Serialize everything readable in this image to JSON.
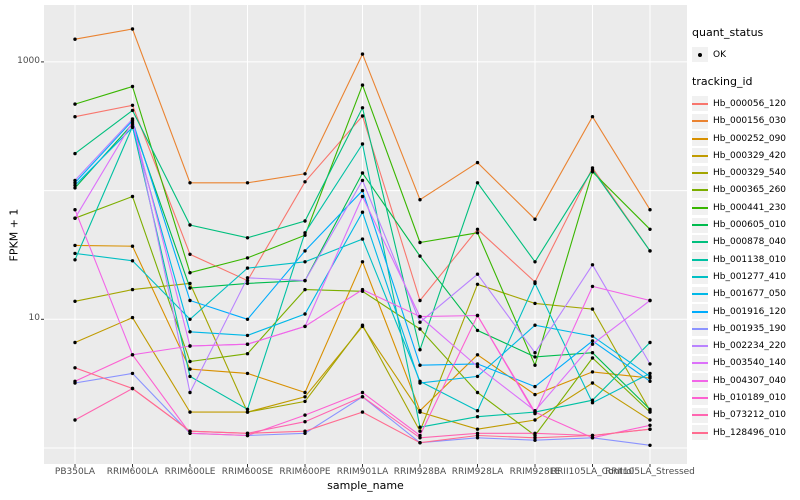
{
  "chart_data": {
    "type": "line",
    "title": "",
    "xlabel": "sample_name",
    "ylabel": "FPKM + 1",
    "y_scale": "log10",
    "ylim": [
      0.75,
      2800
    ],
    "legend_position": "right",
    "grid": true,
    "y_tick_labels": [
      {
        "value": 10,
        "label": "10"
      },
      {
        "value": 1000,
        "label": "1000"
      }
    ],
    "y_gridlines": [
      1,
      10,
      100,
      1000
    ],
    "categories": [
      "PB350LA",
      "RRIM600LA",
      "RRIM600LE",
      "RRIM600SE",
      "RRIM600PE",
      "RRIM901LA",
      "RRIM928BA",
      "RRIM928LA",
      "RRIM928LE",
      "RRII105LA_Control",
      "RRII105LA_Stressed"
    ],
    "series": [
      {
        "name": "Hb_000056_120",
        "color": "#F8766D",
        "values": [
          375,
          460,
          32,
          20,
          117,
          380,
          14,
          50,
          19.5,
          150,
          34
        ]
      },
      {
        "name": "Hb_000156_030",
        "color": "#EA8331",
        "values": [
          1500,
          1800,
          115,
          115,
          135,
          1150,
          85,
          165,
          60,
          375,
          71
        ]
      },
      {
        "name": "Hb_000252_090",
        "color": "#D89000",
        "values": [
          37.5,
          37,
          4.1,
          3.8,
          2.7,
          28,
          1.95,
          5.3,
          2.6,
          3.9,
          3.5
        ]
      },
      {
        "name": "Hb_000329_420",
        "color": "#C09B00",
        "values": [
          6.6,
          10.3,
          1.9,
          1.9,
          2.5,
          8.8,
          1.9,
          1.4,
          1.65,
          3.2,
          1.65
        ]
      },
      {
        "name": "Hb_000329_540",
        "color": "#A3A500",
        "values": [
          13.8,
          17,
          19,
          1.9,
          2.3,
          9,
          1.35,
          18.7,
          13.3,
          12,
          1.95
        ]
      },
      {
        "name": "Hb_000365_260",
        "color": "#7CAE00",
        "values": [
          61,
          90,
          4.7,
          5.4,
          17,
          16.5,
          8.4,
          2.7,
          1.25,
          5,
          1.9
        ]
      },
      {
        "name": "Hb_000441_230",
        "color": "#39B600",
        "values": [
          470,
          644,
          23,
          30,
          45,
          660,
          39.5,
          47,
          4.4,
          140,
          50
        ]
      },
      {
        "name": "Hb_000605_010",
        "color": "#00BB4E",
        "values": [
          105,
          330,
          17.5,
          19,
          20,
          137,
          31,
          8.2,
          5.1,
          5.5,
          2.0
        ]
      },
      {
        "name": "Hb_000878_040",
        "color": "#00BF7D",
        "values": [
          194,
          420,
          54,
          43,
          58,
          440,
          5.8,
          115,
          28,
          145,
          34
        ]
      },
      {
        "name": "Hb_001138_010",
        "color": "#00C1A3",
        "values": [
          29,
          315,
          3.6,
          2.0,
          47,
          230,
          1.45,
          1.75,
          1.9,
          2.35,
          6.6
        ]
      },
      {
        "name": "Hb_001277_410",
        "color": "#00BFC4",
        "values": [
          32.5,
          28.5,
          10,
          25,
          28,
          42,
          3.3,
          1.95,
          19,
          2.25,
          3.8
        ]
      },
      {
        "name": "Hb_001677_050",
        "color": "#00B8E7",
        "values": [
          110,
          310,
          8,
          7.5,
          11,
          68,
          3.2,
          3.6,
          9,
          7.4,
          3.6
        ]
      },
      {
        "name": "Hb_001916_120",
        "color": "#00ACFC",
        "values": [
          115,
          350,
          14,
          10,
          34,
          100,
          4.4,
          4.5,
          3.0,
          6.8,
          3.3
        ]
      },
      {
        "name": "Hb_001935_190",
        "color": "#8B93FF",
        "values": [
          3.2,
          3.8,
          1.3,
          1.25,
          1.3,
          2.5,
          1.1,
          1.2,
          1.15,
          1.2,
          1.05
        ]
      },
      {
        "name": "Hb_002234_220",
        "color": "#B983FF",
        "values": [
          120,
          360,
          2.7,
          21,
          20,
          120,
          9.5,
          22.4,
          5.5,
          26.5,
          4.5
        ]
      },
      {
        "name": "Hb_003540_140",
        "color": "#DC71FA",
        "values": [
          61,
          340,
          6.2,
          6.4,
          8.8,
          90,
          10.5,
          4.3,
          1.95,
          6.4,
          14
        ]
      },
      {
        "name": "Hb_004307_040",
        "color": "#F265E8",
        "values": [
          71,
          5.3,
          6.2,
          6.4,
          8.8,
          17,
          10.5,
          10.7,
          1.85,
          18,
          14
        ]
      },
      {
        "name": "Hb_010189_010",
        "color": "#FD61D1",
        "values": [
          3.3,
          5.3,
          1.3,
          1.25,
          1.8,
          2.7,
          1.25,
          10.7,
          1.9,
          1.2,
          1.5
        ]
      },
      {
        "name": "Hb_073212_010",
        "color": "#FF65B0",
        "values": [
          1.65,
          2.9,
          1.35,
          1.3,
          1.6,
          2.5,
          1.2,
          1.3,
          1.3,
          1.25,
          1.4
        ]
      },
      {
        "name": "Hb_128496_010",
        "color": "#FF6C90",
        "values": [
          4.2,
          2.9,
          1.35,
          1.3,
          1.35,
          1.9,
          1.1,
          1.25,
          1.2,
          1.25,
          1.4
        ]
      }
    ]
  },
  "legend": {
    "quant_status_title": "quant_status",
    "quant_status_items": [
      {
        "label": "OK"
      }
    ],
    "tracking_id_title": "tracking_id"
  },
  "colors": {
    "panel_bg": "#EBEBEB",
    "gridline": "#FFFFFF",
    "tick_text": "#4D4D4D",
    "tick_mark": "#333333",
    "point": "#000000",
    "legend_key_bg": "#F1F1F1"
  }
}
